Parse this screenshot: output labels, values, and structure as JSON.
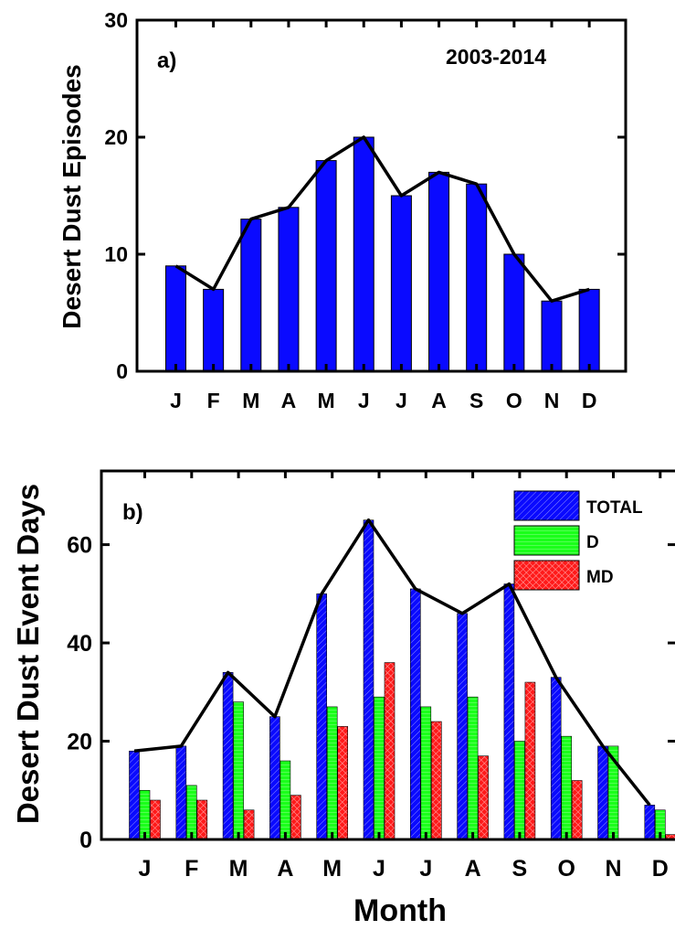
{
  "colors": {
    "total": "#0a0aff",
    "d": "#1aff1a",
    "md": "#ff1a1a",
    "line": "#000000"
  },
  "chart_data": [
    {
      "type": "bar",
      "panel_label": "a)",
      "annotation": "2003-2014",
      "ylabel": "Desert Dust Episodes",
      "xlabel": "",
      "ylim": [
        0,
        30
      ],
      "yticks": [
        0,
        10,
        20,
        30
      ],
      "categories": [
        "J",
        "F",
        "M",
        "A",
        "M",
        "J",
        "J",
        "A",
        "S",
        "O",
        "N",
        "D"
      ],
      "series": [
        {
          "values": [
            9,
            7,
            13,
            14,
            18,
            20,
            15,
            17,
            16,
            10,
            6,
            7
          ]
        }
      ],
      "line_overlay": [
        9,
        7,
        13,
        14,
        18,
        20,
        15,
        17,
        16,
        10,
        6,
        7
      ],
      "grid": false,
      "legend": "none"
    },
    {
      "type": "bar",
      "panel_label": "b)",
      "ylabel": "Desert Dust Event Days",
      "xlabel": "Month",
      "ylim": [
        0,
        75
      ],
      "yticks": [
        0,
        20,
        40,
        60
      ],
      "categories": [
        "J",
        "F",
        "M",
        "A",
        "M",
        "J",
        "J",
        "A",
        "S",
        "O",
        "N",
        "D"
      ],
      "series": [
        {
          "name": "TOTAL",
          "values": [
            18,
            19,
            34,
            25,
            50,
            65,
            51,
            46,
            52,
            33,
            19,
            7
          ]
        },
        {
          "name": "D",
          "values": [
            10,
            11,
            28,
            16,
            27,
            29,
            27,
            29,
            20,
            21,
            19,
            6
          ]
        },
        {
          "name": "MD",
          "values": [
            8,
            8,
            6,
            9,
            23,
            36,
            24,
            17,
            32,
            12,
            0,
            1
          ]
        }
      ],
      "line_overlay": [
        18,
        19,
        34,
        25,
        50,
        65,
        51,
        46,
        52,
        33,
        19,
        7
      ],
      "grid": false,
      "legend": "top-right"
    }
  ]
}
